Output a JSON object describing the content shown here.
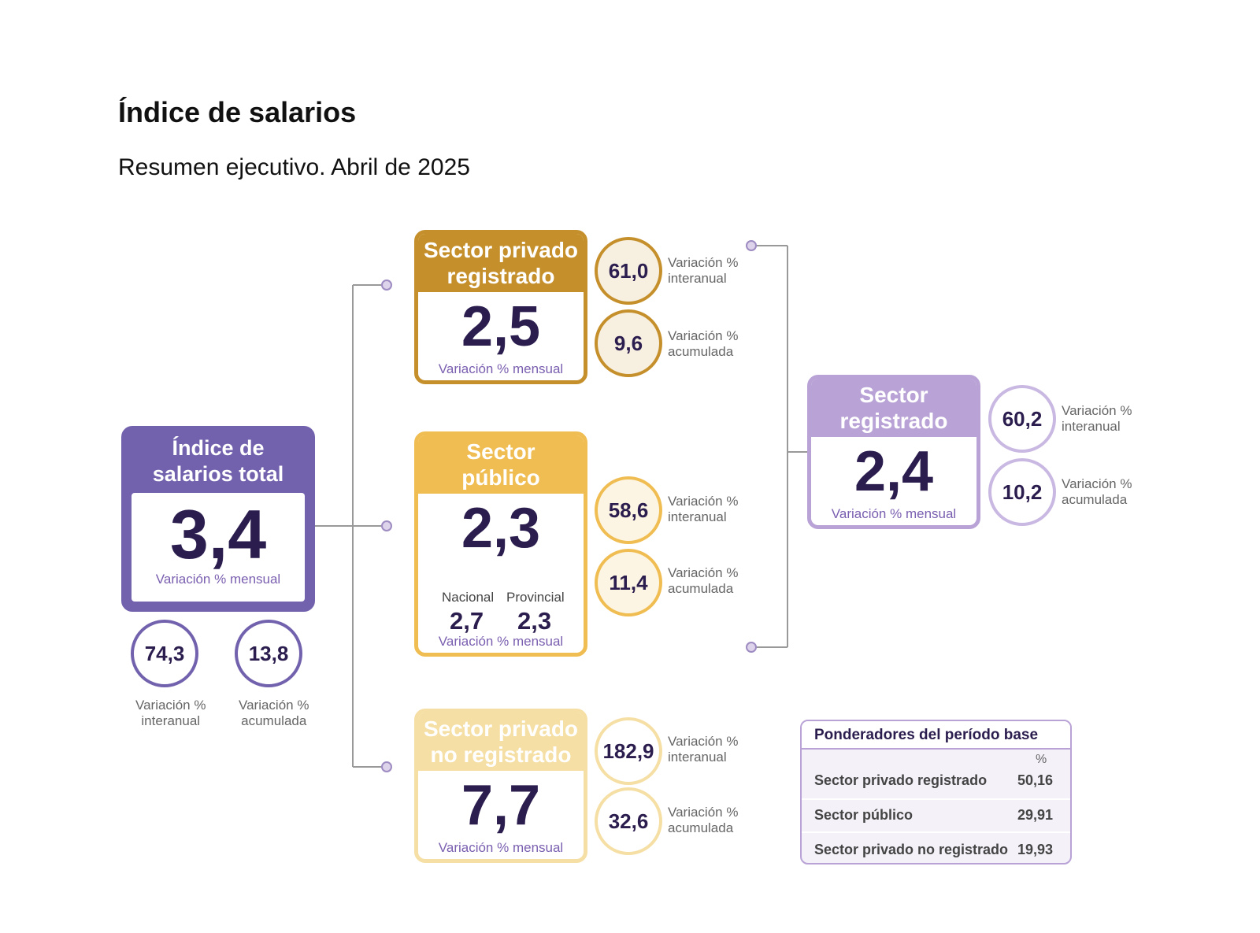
{
  "header": {
    "title": "Índice de salarios",
    "subtitle": "Resumen ejecutivo. Abril de 2025"
  },
  "labels": {
    "monthly": "Variación % mensual",
    "yoy": "Variación %\ninteranual",
    "cum": "Variación %\nacumulada",
    "yoy_line1": "Variación %",
    "yoy_line2": "interanual",
    "cum_line1": "Variación %",
    "cum_line2": "acumulada"
  },
  "total": {
    "title_line1": "Índice de",
    "title_line2": "salarios total",
    "monthly": "3,4",
    "yoy": "74,3",
    "cum": "13,8",
    "color": "#7262ae"
  },
  "private_registered": {
    "title_line1": "Sector privado",
    "title_line2": "registrado",
    "monthly": "2,5",
    "yoy": "61,0",
    "cum": "9,6",
    "color": "#c5902b"
  },
  "public": {
    "title_line1": "Sector",
    "title_line2": "público",
    "monthly": "2,3",
    "national_label": "Nacional",
    "national_value": "2,7",
    "provincial_label": "Provincial",
    "provincial_value": "2,3",
    "yoy": "58,6",
    "cum": "11,4",
    "color": "#f0bd52"
  },
  "private_unregistered": {
    "title_line1": "Sector privado",
    "title_line2": "no registrado",
    "monthly": "7,7",
    "yoy": "182,9",
    "cum": "32,6",
    "color": "#f5dfa4"
  },
  "registered": {
    "title_line1": "Sector",
    "title_line2": "registrado",
    "monthly": "2,4",
    "yoy": "60,2",
    "cum": "10,2",
    "color": "#b8a2d6"
  },
  "weights": {
    "title": "Ponderadores del período base",
    "unit": "%",
    "rows": [
      {
        "name": "Sector privado registrado",
        "value": "50,16"
      },
      {
        "name": "Sector público",
        "value": "29,91"
      },
      {
        "name": "Sector privado no registrado",
        "value": "19,93"
      }
    ]
  }
}
